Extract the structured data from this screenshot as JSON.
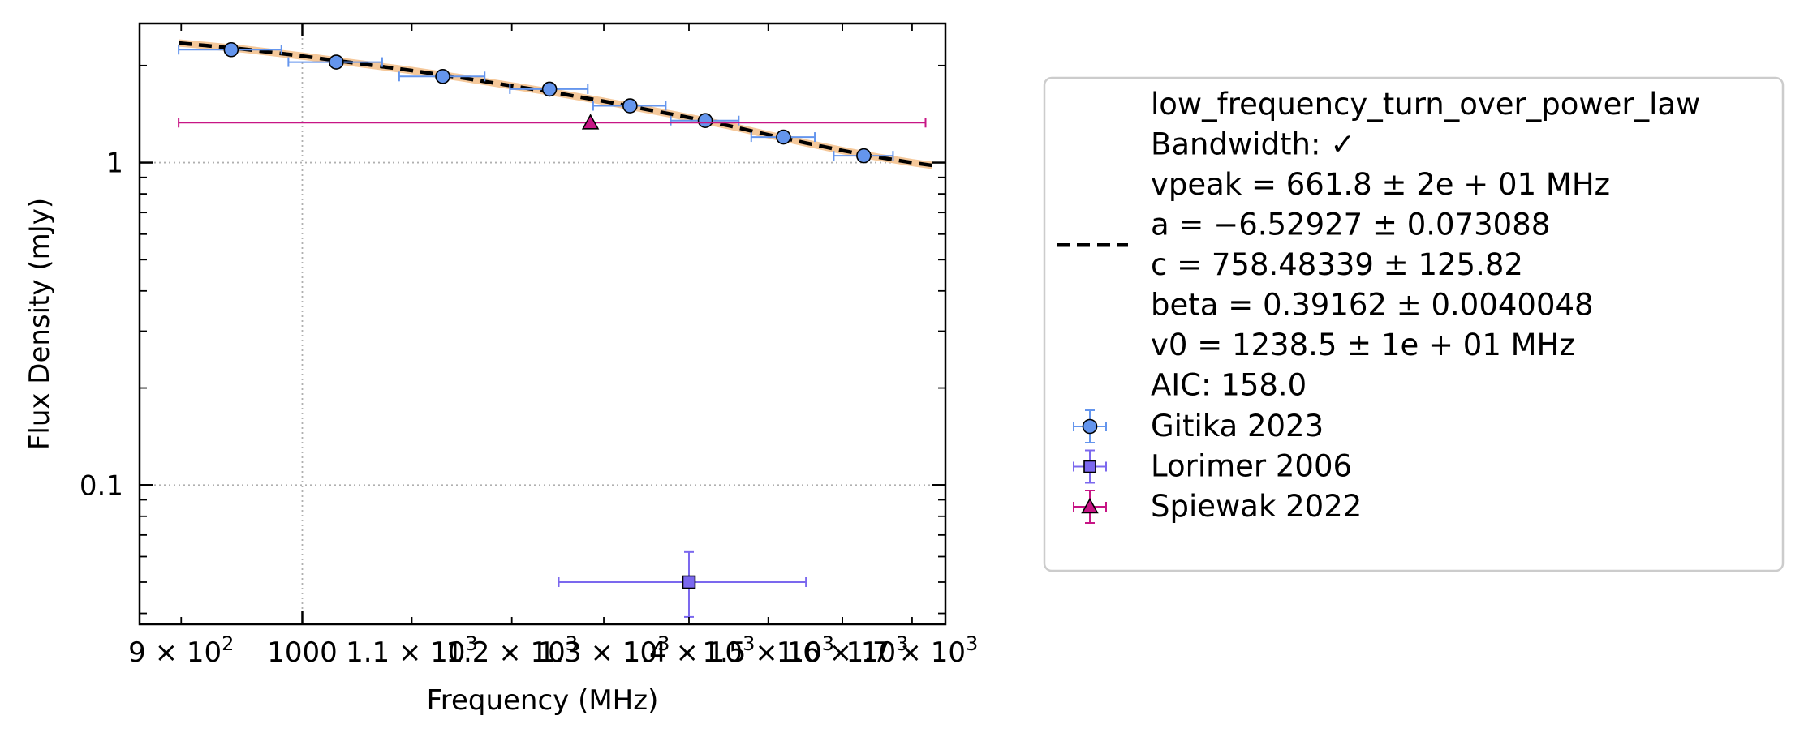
{
  "chart_data": {
    "type": "scatter",
    "title": "",
    "xlabel": "Frequency (MHz)",
    "ylabel": "Flux Density (mJy)",
    "xscale": "log",
    "yscale": "log",
    "xlim": [
      868,
      1750
    ],
    "ylim": [
      0.037,
      2.7
    ],
    "grid": "dotted",
    "legend_position": "outside-right",
    "x_ticks": [
      {
        "value": 900,
        "label": "9 × 10²"
      },
      {
        "value": 1000,
        "label": "1000"
      },
      {
        "value": 1100,
        "label": "1.1 × 10³"
      },
      {
        "value": 1200,
        "label": "1.2 × 10³"
      },
      {
        "value": 1300,
        "label": "1.3 × 10³"
      },
      {
        "value": 1400,
        "label": "1.4 × 10³"
      },
      {
        "value": 1500,
        "label": "1.5 × 10³"
      },
      {
        "value": 1600,
        "label": "1.6 × 10³"
      },
      {
        "value": 1700,
        "label": "1.7 × 10³"
      }
    ],
    "y_ticks": [
      {
        "value": 0.1,
        "label": "0.1"
      },
      {
        "value": 1,
        "label": "1"
      }
    ],
    "fit": {
      "name": "low_frequency_turn_over_power_law",
      "color": "#000000",
      "band_color": "#f5c89a",
      "x": [
        898,
        950,
        1000,
        1050,
        1100,
        1150,
        1200,
        1250,
        1300,
        1350,
        1400,
        1450,
        1500,
        1550,
        1600,
        1650,
        1700,
        1730
      ],
      "y": [
        2.35,
        2.25,
        2.14,
        2.03,
        1.93,
        1.83,
        1.73,
        1.64,
        1.55,
        1.46,
        1.38,
        1.3,
        1.22,
        1.15,
        1.09,
        1.04,
        1.0,
        0.98
      ],
      "legend_lines": [
        "low_frequency_turn_over_power_law",
        "Bandwidth: ✓",
        "vpeak = 661.8 ± 2e + 01 MHz",
        "a = −6.52927 ± 0.073088",
        "c = 758.48339 ± 125.82",
        "beta = 0.39162 ± 0.0040048",
        "v0 = 1238.5 ± 1e + 01 MHz",
        "AIC: 158.0"
      ]
    },
    "series": [
      {
        "name": "Gitika 2023",
        "marker": "circle",
        "color": "#6495ed",
        "points": [
          {
            "x": 940,
            "y": 2.24,
            "xerr": 42
          },
          {
            "x": 1030,
            "y": 2.05,
            "xerr": 42
          },
          {
            "x": 1130,
            "y": 1.85,
            "xerr": 42
          },
          {
            "x": 1240,
            "y": 1.69,
            "xerr": 42
          },
          {
            "x": 1330,
            "y": 1.5,
            "xerr": 42
          },
          {
            "x": 1420,
            "y": 1.35,
            "xerr": 42
          },
          {
            "x": 1520,
            "y": 1.2,
            "xerr": 42
          },
          {
            "x": 1630,
            "y": 1.05,
            "xerr": 42
          }
        ]
      },
      {
        "name": "Lorimer 2006",
        "marker": "square",
        "color": "#7b68ee",
        "points": [
          {
            "x": 1400,
            "y": 0.05,
            "xlo": 1250,
            "xhi": 1550,
            "ylo": 0.039,
            "yhi": 0.062
          }
        ]
      },
      {
        "name": "Spiewak 2022",
        "marker": "triangle",
        "color": "#c71585",
        "points": [
          {
            "x": 1285,
            "y": 1.33,
            "xlo": 898,
            "xhi": 1720
          }
        ]
      }
    ]
  }
}
